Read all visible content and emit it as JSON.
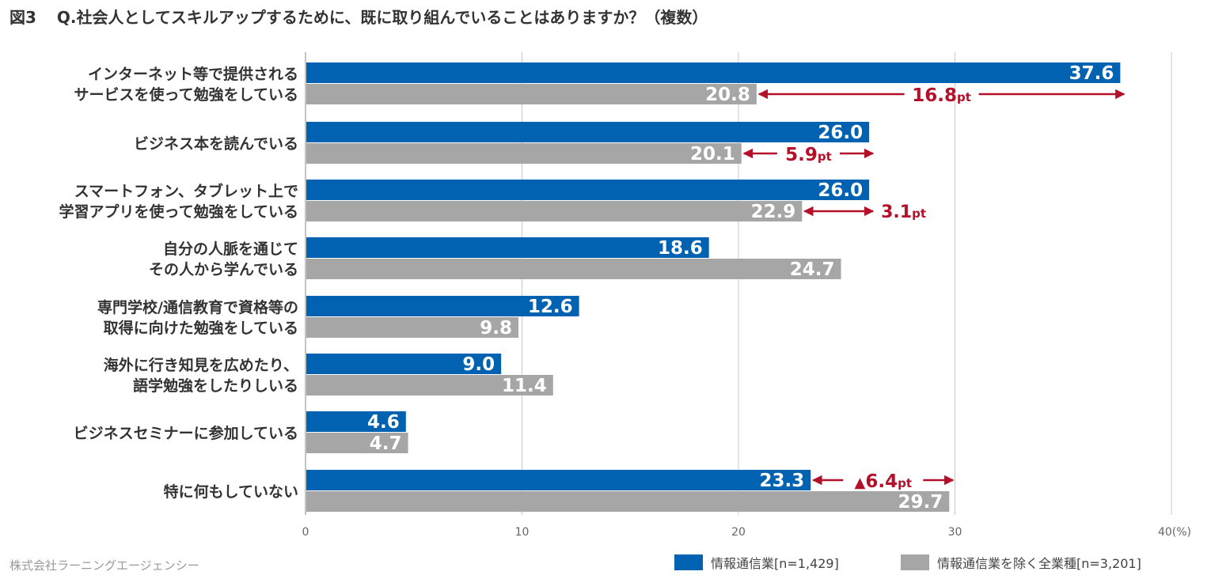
{
  "figure_label": "図3",
  "question": "Q.社会人としてスキルアップするために、既に取り組んでいることはありますか？（複数）",
  "company": "株式会社ラーニングエージェンシー",
  "colors": {
    "blue": "#0062B1",
    "gray": "#A6A6A6",
    "accent": "#B5102A",
    "grid": "#C8C8C8"
  },
  "chart_data": {
    "type": "bar",
    "orientation": "horizontal",
    "title": "Q.社会人としてスキルアップするために、既に取り組んでいることはありますか？（複数）",
    "xlim": [
      0,
      40
    ],
    "ticks": [
      "0",
      "10",
      "20",
      "30",
      "40(%)"
    ],
    "tick_values": [
      0,
      10,
      20,
      30,
      40
    ],
    "grid": true,
    "legend_position": "bottom-right",
    "categories": [
      [
        "インターネット等で提供される",
        "サービスを使って勉強をしている"
      ],
      [
        "ビジネス本を読んでいる"
      ],
      [
        "スマートフォン、タブレット上で",
        "学習アプリを使って勉強をしている"
      ],
      [
        "自分の人脈を通じて",
        "その人から学んでいる"
      ],
      [
        "専門学校/通信教育で資格等の",
        "取得に向けた勉強をしている"
      ],
      [
        "海外に行き知見を広めたり、",
        "語学勉強をしたりしいる"
      ],
      [
        "ビジネスセミナーに参加している"
      ],
      [
        "特に何もしていない"
      ]
    ],
    "series": [
      {
        "name": "情報通信業[n=1,429]",
        "color": "#0062B1",
        "values": [
          37.6,
          26.0,
          26.0,
          18.6,
          12.6,
          9.0,
          4.6,
          23.3
        ],
        "labels": [
          "37.6",
          "26.0",
          "26.0",
          "18.6",
          "12.6",
          "9.0",
          "4.6",
          "23.3"
        ]
      },
      {
        "name": "情報通信業を除く全業種[n=3,201]",
        "color": "#A6A6A6",
        "values": [
          20.8,
          20.1,
          22.9,
          24.7,
          9.8,
          11.4,
          4.7,
          29.7
        ],
        "labels": [
          "20.8",
          "20.1",
          "22.9",
          "24.7",
          "9.8",
          "11.4",
          "4.7",
          "29.7"
        ]
      }
    ],
    "annotations": [
      {
        "category_index": 0,
        "from": 20.8,
        "to": 37.6,
        "value": "16.8",
        "unit": "pt",
        "prefix": "",
        "row": "gray"
      },
      {
        "category_index": 1,
        "from": 20.1,
        "to": 26.0,
        "value": "5.9",
        "unit": "pt",
        "prefix": "",
        "row": "gray"
      },
      {
        "category_index": 2,
        "from": 22.9,
        "to": 26.0,
        "value": "3.1",
        "unit": "pt",
        "prefix": "",
        "row": "gray",
        "label_outside": true
      },
      {
        "category_index": 7,
        "from": 23.3,
        "to": 29.7,
        "value": "6.4",
        "unit": "pt",
        "prefix": "▲",
        "row": "blue"
      }
    ]
  }
}
